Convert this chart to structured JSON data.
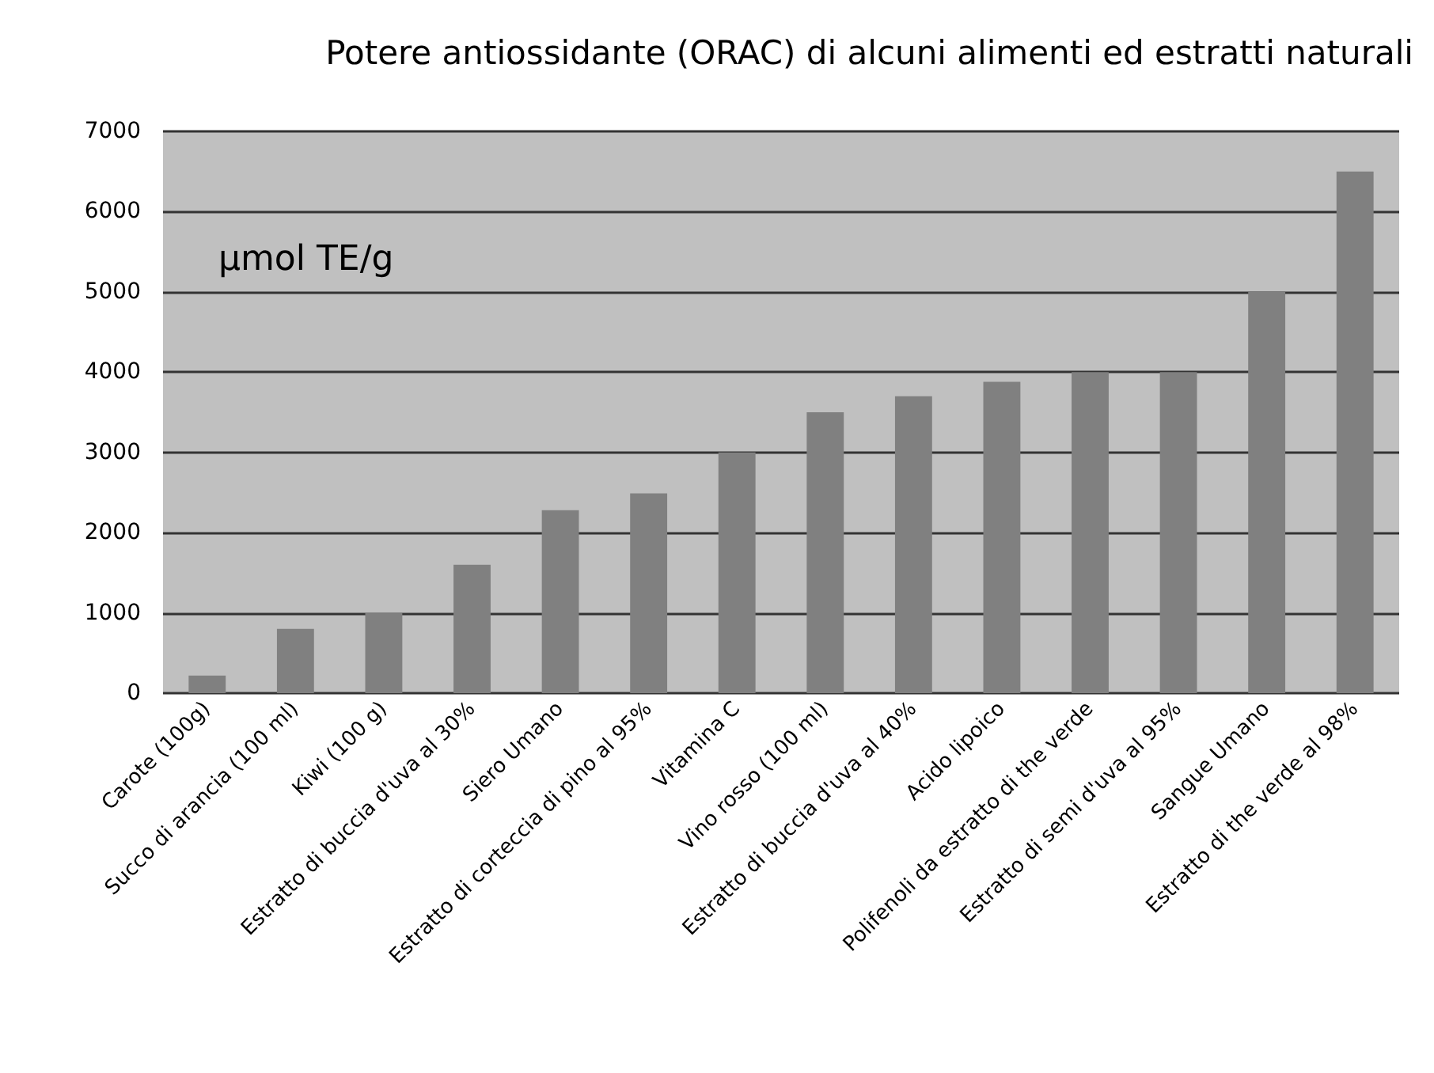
{
  "chart_data": {
    "type": "bar",
    "title": "Potere antiossidante (ORAC) di alcuni alimenti ed estratti naturali",
    "ylabel": "µmol TE/g",
    "categories": [
      "Carote (100g)",
      "Succo di arancia (100 ml)",
      "Kiwi (100 g)",
      "Estratto di buccia d'uva al 30%",
      "Siero Umano",
      "Estratto di corteccia di pino al 95%",
      "Vitamina C",
      "Vino rosso (100 ml)",
      "Estratto di buccia d'uva al 40%",
      "Acido lipoico",
      "Polifenoli da estratto di the verde",
      "Estratto di semi d'uva al 95%",
      "Sangue Umano",
      "Estratto di the verde al 98%"
    ],
    "values": [
      220,
      800,
      1000,
      1600,
      2280,
      2490,
      3000,
      3500,
      3700,
      3880,
      4000,
      4000,
      5000,
      6500
    ],
    "color": "#808080",
    "ylim": [
      0,
      7000
    ],
    "yticks": [
      0,
      1000,
      2000,
      3000,
      4000,
      5000,
      6000,
      7000
    ],
    "grid": "y"
  }
}
